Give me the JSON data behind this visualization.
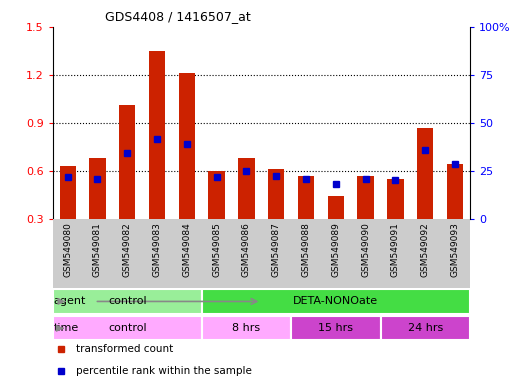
{
  "title": "GDS4408 / 1416507_at",
  "samples": [
    "GSM549080",
    "GSM549081",
    "GSM549082",
    "GSM549083",
    "GSM549084",
    "GSM549085",
    "GSM549086",
    "GSM549087",
    "GSM549088",
    "GSM549089",
    "GSM549090",
    "GSM549091",
    "GSM549092",
    "GSM549093"
  ],
  "red_values": [
    0.63,
    0.68,
    1.01,
    1.35,
    1.21,
    0.6,
    0.68,
    0.61,
    0.57,
    0.44,
    0.57,
    0.55,
    0.87,
    0.64
  ],
  "blue_values": [
    0.56,
    0.55,
    0.71,
    0.8,
    0.77,
    0.56,
    0.6,
    0.57,
    0.55,
    0.52,
    0.55,
    0.54,
    0.73,
    0.64
  ],
  "ylim_left": [
    0.3,
    1.5
  ],
  "ylim_right": [
    0,
    100
  ],
  "yticks_left": [
    0.3,
    0.6,
    0.9,
    1.2,
    1.5
  ],
  "yticks_right": [
    0,
    25,
    50,
    75,
    100
  ],
  "ytick_labels_right": [
    "0",
    "25",
    "50",
    "75",
    "100%"
  ],
  "red_color": "#cc2200",
  "blue_color": "#0000cc",
  "bar_width": 0.55,
  "agent_row": [
    {
      "label": "control",
      "start": 0,
      "end": 5,
      "color": "#99ee99"
    },
    {
      "label": "DETA-NONOate",
      "start": 5,
      "end": 14,
      "color": "#44dd44"
    }
  ],
  "time_row": [
    {
      "label": "control",
      "start": 0,
      "end": 5,
      "color": "#ffaaff"
    },
    {
      "label": "8 hrs",
      "start": 5,
      "end": 8,
      "color": "#ffaaff"
    },
    {
      "label": "15 hrs",
      "start": 8,
      "end": 11,
      "color": "#cc44cc"
    },
    {
      "label": "24 hrs",
      "start": 11,
      "end": 14,
      "color": "#cc44cc"
    }
  ],
  "legend_items": [
    {
      "label": "transformed count",
      "color": "#cc2200"
    },
    {
      "label": "percentile rank within the sample",
      "color": "#0000cc"
    }
  ],
  "fig_bg": "#ffffff",
  "grid_yticks": [
    0.6,
    0.9,
    1.2
  ]
}
